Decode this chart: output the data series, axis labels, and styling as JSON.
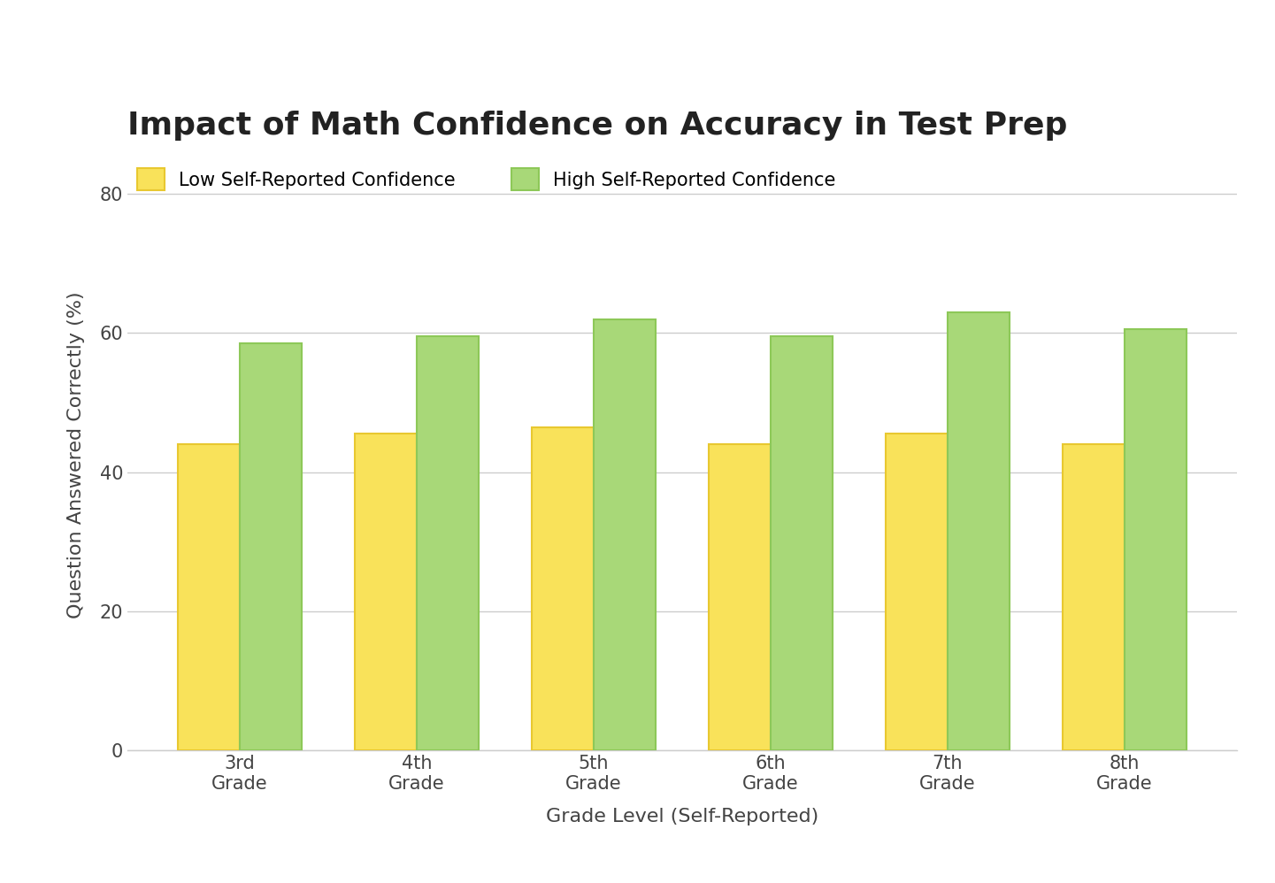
{
  "title": "Impact of Math Confidence on Accuracy in Test Prep",
  "xlabel": "Grade Level (Self-Reported)",
  "ylabel": "Question Answered Correctly (%)",
  "grades": [
    "3rd\nGrade",
    "4th\nGrade",
    "5th\nGrade",
    "6th\nGrade",
    "7th\nGrade",
    "8th\nGrade"
  ],
  "low_confidence": [
    44,
    45.5,
    46.5,
    44,
    45.5,
    44
  ],
  "high_confidence": [
    58.5,
    59.5,
    62,
    59.5,
    63,
    60.5
  ],
  "low_color": "#F9E25A",
  "low_edge_color": "#E8C830",
  "high_color": "#A8D878",
  "high_edge_color": "#8DC858",
  "ylim": [
    0,
    85
  ],
  "yticks": [
    0,
    20,
    40,
    60,
    80
  ],
  "bar_width": 0.35,
  "background_color": "#ffffff",
  "grid_color": "#cccccc",
  "title_fontsize": 26,
  "label_fontsize": 16,
  "tick_fontsize": 15,
  "legend_fontsize": 15,
  "legend_low": "Low Self-Reported Confidence",
  "legend_high": "High Self-Reported Confidence",
  "title_color": "#222222",
  "axis_color": "#444444"
}
